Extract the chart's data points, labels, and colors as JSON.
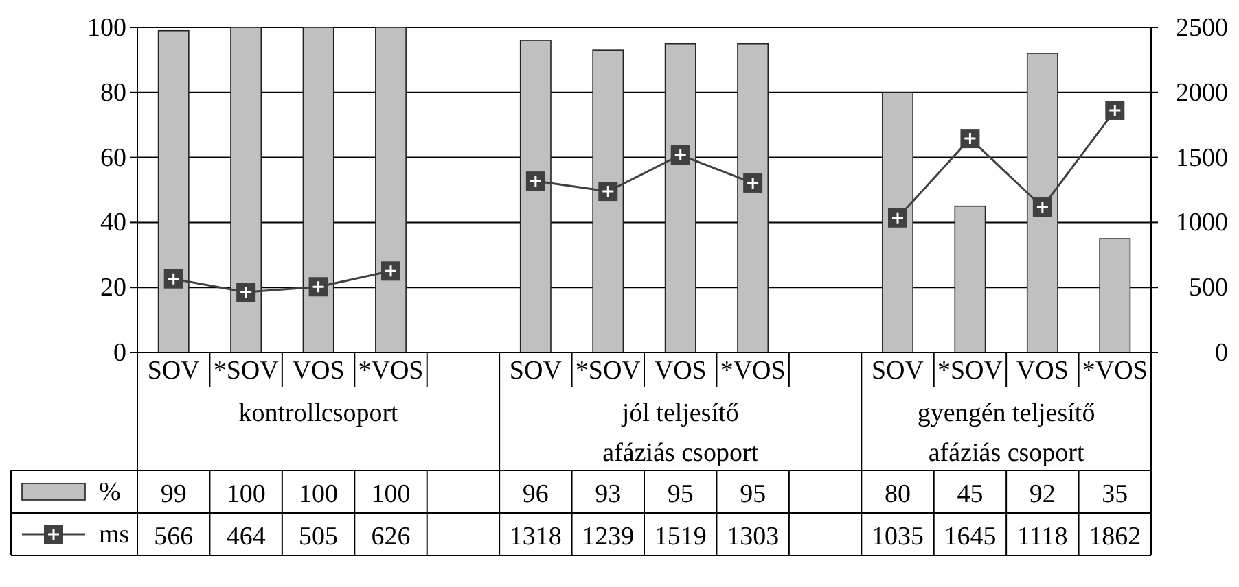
{
  "chart_data": {
    "type": "bar",
    "categories": [
      "SOV",
      "*SOV",
      "VOS",
      "*VOS",
      null,
      "SOV",
      "*SOV",
      "VOS",
      "*VOS",
      null,
      "SOV",
      "*SOV",
      "VOS",
      "*VOS"
    ],
    "series": [
      {
        "name": "%",
        "color": "#c0c0c0",
        "values": [
          99,
          100,
          100,
          100,
          null,
          96,
          93,
          95,
          95,
          null,
          80,
          45,
          92,
          35
        ]
      },
      {
        "name": "ms",
        "type": "line",
        "axis": "y2",
        "color": "#404040",
        "marker": "square",
        "values": [
          566,
          464,
          505,
          626,
          null,
          1318,
          1239,
          1519,
          1303,
          null,
          1035,
          1645,
          1118,
          1862
        ]
      }
    ],
    "annotations": [
      "kontrollcsoport",
      "jól teljesítő\nafáziás csoport",
      "gyengén teljesítő\nafáziás csoport"
    ],
    "ylim": [
      0,
      100
    ],
    "yticks": [
      0,
      20,
      40,
      60,
      80,
      100
    ],
    "y2lim": [
      0,
      2500
    ],
    "y2ticks": [
      0,
      500,
      1000,
      1500,
      2000,
      2500
    ],
    "grid": "y",
    "legend": "bottom",
    "data_labels": true
  }
}
